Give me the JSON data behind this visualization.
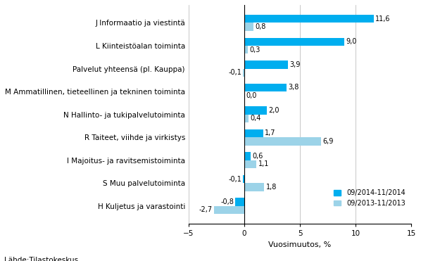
{
  "categories": [
    "J Informaatio ja viestintä",
    "L Kiinteistöalan toiminta",
    "Palvelut yhteen sä (pl. Kauppa)",
    "M Ammatillinen, tieteellinen ja tekninen toiminta",
    "N Hallinto- ja tukipalvelutoiminta",
    "R Taiteet, viihde ja virkistys",
    "I Majoitus- ja ravitsemistoiminta",
    "S Muu palvelutoiminta",
    "H Kuljetus ja varastointi"
  ],
  "series1_label": "09/2014-11/2014",
  "series2_label": "09/2013-11/2013",
  "series1_values": [
    11.6,
    9.0,
    3.9,
    3.8,
    2.0,
    1.7,
    0.6,
    -0.1,
    -0.8
  ],
  "series2_values": [
    0.8,
    0.3,
    -0.1,
    0.0,
    0.4,
    6.9,
    1.1,
    1.8,
    -2.7
  ],
  "series1_color": "#00AEEF",
  "series2_color": "#9CD3E8",
  "xlabel": "Vuosimuutos, %",
  "xlim": [
    -5,
    15
  ],
  "xticks": [
    -5,
    0,
    5,
    10,
    15
  ],
  "footnote": "Lähde:Tilastokeskus",
  "bar_height": 0.35,
  "grid_color": "#b0b0b0",
  "background_color": "#ffffff"
}
